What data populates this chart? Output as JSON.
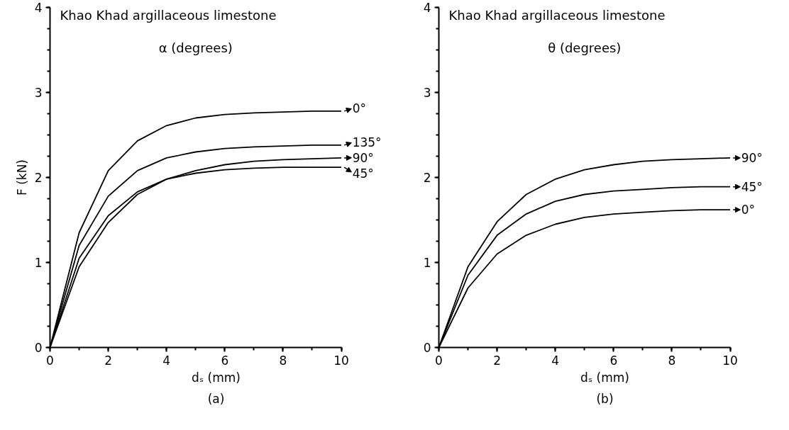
{
  "chart_data": [
    {
      "type": "line",
      "title": "Khao Khad argillaceous limestone",
      "legend_title": "α (degrees)",
      "xlabel": "dₛ (mm)",
      "ylabel": "F (kN)",
      "annotations": [
        "(a)"
      ],
      "x": [
        0,
        1,
        2,
        3,
        4,
        5,
        6,
        7,
        8,
        9,
        10
      ],
      "xlim": [
        0,
        10
      ],
      "xticks": [
        0,
        2,
        4,
        6,
        8,
        10
      ],
      "ylim": [
        0,
        4
      ],
      "yticks": [
        0,
        1,
        2,
        3,
        4
      ],
      "grid": false,
      "legend": "right",
      "marker": "none",
      "line_style": "solid",
      "series": [
        {
          "name": "0°",
          "color": "#000000",
          "values": [
            0,
            1.35,
            2.08,
            2.43,
            2.61,
            2.7,
            2.74,
            2.76,
            2.77,
            2.78,
            2.78
          ]
        },
        {
          "name": "135°",
          "color": "#000000",
          "values": [
            0,
            1.2,
            1.78,
            2.08,
            2.23,
            2.3,
            2.34,
            2.36,
            2.37,
            2.38,
            2.38
          ]
        },
        {
          "name": "90°",
          "color": "#000000",
          "values": [
            0,
            1.05,
            1.55,
            1.83,
            1.98,
            2.08,
            2.15,
            2.19,
            2.21,
            2.22,
            2.23
          ]
        },
        {
          "name": "45°",
          "color": "#000000",
          "values": [
            0,
            0.95,
            1.47,
            1.8,
            1.98,
            2.05,
            2.09,
            2.11,
            2.12,
            2.12,
            2.12
          ]
        }
      ]
    },
    {
      "type": "line",
      "title": "Khao Khad argillaceous limestone",
      "legend_title": "θ (degrees)",
      "xlabel": "dₛ (mm)",
      "annotations": [
        "(b)"
      ],
      "x": [
        0,
        1,
        2,
        3,
        4,
        5,
        6,
        7,
        8,
        9,
        10
      ],
      "xlim": [
        0,
        10
      ],
      "xticks": [
        0,
        2,
        4,
        6,
        8,
        10
      ],
      "ylim": [
        0,
        4
      ],
      "yticks": [
        0,
        1,
        2,
        3,
        4
      ],
      "grid": false,
      "legend": "right",
      "marker": "none",
      "line_style": "solid",
      "series": [
        {
          "name": "90°",
          "color": "#000000",
          "values": [
            0,
            0.95,
            1.48,
            1.8,
            1.98,
            2.09,
            2.15,
            2.19,
            2.21,
            2.22,
            2.23
          ]
        },
        {
          "name": "45°",
          "color": "#000000",
          "values": [
            0,
            0.85,
            1.32,
            1.57,
            1.72,
            1.8,
            1.84,
            1.86,
            1.88,
            1.89,
            1.89
          ]
        },
        {
          "name": "0°",
          "color": "#000000",
          "values": [
            0,
            0.7,
            1.1,
            1.32,
            1.45,
            1.53,
            1.57,
            1.59,
            1.61,
            1.62,
            1.62
          ]
        }
      ]
    }
  ]
}
